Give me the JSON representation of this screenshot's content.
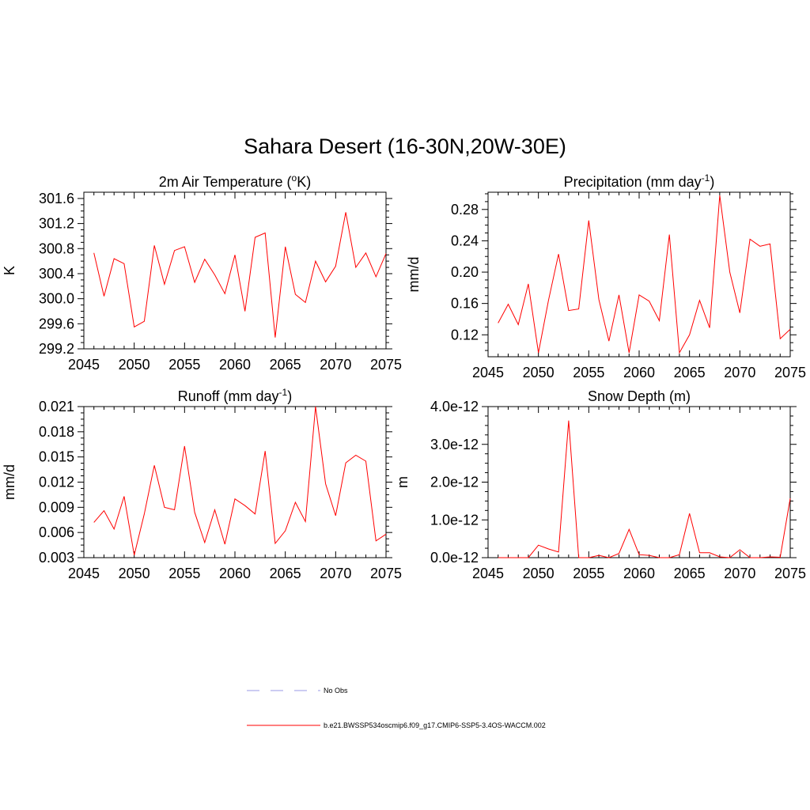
{
  "title": "Sahara Desert (16-30N,20W-30E)",
  "colors": {
    "model": "#ff0000",
    "obs": "#9a9ae6",
    "axis": "#000000"
  },
  "chart_data": [
    {
      "type": "line",
      "title": "2m Air Temperature (",
      "title_sup": "o",
      "title_post": "K)",
      "ylabel": "K",
      "xlim": [
        2045,
        2075
      ],
      "ylim": [
        299.2,
        301.7
      ],
      "xticks": [
        2045,
        2050,
        2055,
        2060,
        2065,
        2070,
        2075
      ],
      "xtick_labels": [
        "2045",
        "2050",
        "2055",
        "2060",
        "2065",
        "2070",
        "2075"
      ],
      "yticks": [
        299.2,
        299.6,
        300.0,
        300.4,
        300.8,
        301.2,
        301.6
      ],
      "ytick_labels": [
        "299.2",
        "299.6",
        "300.0",
        "300.4",
        "300.8",
        "301.2",
        "301.6"
      ],
      "x": [
        2046,
        2047,
        2048,
        2049,
        2050,
        2051,
        2052,
        2053,
        2054,
        2055,
        2056,
        2057,
        2058,
        2059,
        2060,
        2061,
        2062,
        2063,
        2064,
        2065,
        2066,
        2067,
        2068,
        2069,
        2070,
        2071,
        2072,
        2073,
        2074,
        2075
      ],
      "series": [
        {
          "values": [
            300.73,
            300.04,
            300.64,
            300.56,
            299.55,
            299.64,
            300.85,
            300.23,
            300.77,
            300.83,
            300.26,
            300.63,
            300.38,
            300.08,
            300.7,
            299.8,
            300.98,
            301.05,
            299.38,
            300.83,
            300.07,
            299.94,
            300.6,
            300.27,
            300.52,
            301.38,
            300.5,
            300.73,
            300.35,
            300.72
          ]
        }
      ]
    },
    {
      "type": "line",
      "title": "Precipitation (mm day",
      "title_sup": "-1",
      "title_post": ")",
      "ylabel": "mm/d",
      "xlim": [
        2045,
        2075
      ],
      "ylim": [
        0.092,
        0.302
      ],
      "xticks": [
        2045,
        2050,
        2055,
        2060,
        2065,
        2070,
        2075
      ],
      "xtick_labels": [
        "2045",
        "2050",
        "2055",
        "2060",
        "2065",
        "2070",
        "2075"
      ],
      "yticks": [
        0.12,
        0.16,
        0.2,
        0.24,
        0.28
      ],
      "ytick_labels": [
        "0.12",
        "0.16",
        "0.20",
        "0.24",
        "0.28"
      ],
      "x": [
        2046,
        2047,
        2048,
        2049,
        2050,
        2051,
        2052,
        2053,
        2054,
        2055,
        2056,
        2057,
        2058,
        2059,
        2060,
        2061,
        2062,
        2063,
        2064,
        2065,
        2066,
        2067,
        2068,
        2069,
        2070,
        2071,
        2072,
        2073,
        2074,
        2075
      ],
      "series": [
        {
          "values": [
            0.135,
            0.159,
            0.133,
            0.185,
            0.097,
            0.164,
            0.223,
            0.151,
            0.153,
            0.266,
            0.165,
            0.112,
            0.171,
            0.097,
            0.171,
            0.163,
            0.138,
            0.248,
            0.097,
            0.12,
            0.164,
            0.129,
            0.298,
            0.2,
            0.148,
            0.242,
            0.233,
            0.236,
            0.115,
            0.127
          ]
        }
      ]
    },
    {
      "type": "line",
      "title": "Runoff (mm day",
      "title_sup": "-1",
      "title_post": ")",
      "ylabel": "mm/d",
      "xlim": [
        2045,
        2075
      ],
      "ylim": [
        0.003,
        0.021
      ],
      "xticks": [
        2045,
        2050,
        2055,
        2060,
        2065,
        2070,
        2075
      ],
      "xtick_labels": [
        "2045",
        "2050",
        "2055",
        "2060",
        "2065",
        "2070",
        "2075"
      ],
      "yticks": [
        0.003,
        0.006,
        0.009,
        0.012,
        0.015,
        0.018,
        0.021
      ],
      "ytick_labels": [
        "0.003",
        "0.006",
        "0.009",
        "0.012",
        "0.015",
        "0.018",
        "0.021"
      ],
      "x": [
        2046,
        2047,
        2048,
        2049,
        2050,
        2051,
        2052,
        2053,
        2054,
        2055,
        2056,
        2057,
        2058,
        2059,
        2060,
        2061,
        2062,
        2063,
        2064,
        2065,
        2066,
        2067,
        2068,
        2069,
        2070,
        2071,
        2072,
        2073,
        2074,
        2075
      ],
      "series": [
        {
          "values": [
            0.0072,
            0.0086,
            0.0064,
            0.0103,
            0.0033,
            0.0082,
            0.014,
            0.009,
            0.0087,
            0.0163,
            0.0084,
            0.0048,
            0.0087,
            0.0046,
            0.01,
            0.0092,
            0.0082,
            0.0157,
            0.0047,
            0.0062,
            0.0096,
            0.0073,
            0.021,
            0.0118,
            0.008,
            0.0143,
            0.0152,
            0.0145,
            0.005,
            0.0058
          ]
        }
      ]
    },
    {
      "type": "line",
      "title": "Snow Depth (m)",
      "title_sup": "",
      "title_post": "",
      "ylabel": "m",
      "xlim": [
        2045,
        2075
      ],
      "ylim": [
        0,
        4e-12
      ],
      "xticks": [
        2045,
        2050,
        2055,
        2060,
        2065,
        2070,
        2075
      ],
      "xtick_labels": [
        "2045",
        "2050",
        "2055",
        "2060",
        "2065",
        "2070",
        "2075"
      ],
      "yticks": [
        0,
        1e-12,
        2e-12,
        3e-12,
        4e-12
      ],
      "ytick_labels": [
        "0.0e-12",
        "1.0e-12",
        "2.0e-12",
        "3.0e-12",
        "4.0e-12"
      ],
      "x": [
        2046,
        2047,
        2048,
        2049,
        2050,
        2051,
        2052,
        2053,
        2054,
        2055,
        2056,
        2057,
        2058,
        2059,
        2060,
        2061,
        2062,
        2063,
        2064,
        2065,
        2066,
        2067,
        2068,
        2069,
        2070,
        2071,
        2072,
        2073,
        2074,
        2075
      ],
      "series": [
        {
          "values": [
            0,
            0,
            0,
            0,
            3.3e-13,
            2.3e-13,
            1.5e-13,
            3.63e-12,
            0,
            0,
            6e-14,
            0,
            1.1e-13,
            7.5e-13,
            8e-14,
            6e-14,
            0,
            0,
            8e-14,
            1.17e-12,
            1.3e-13,
            1.3e-13,
            2e-14,
            0,
            2.1e-13,
            0,
            0,
            2e-14,
            1e-14,
            1.57e-12
          ]
        }
      ]
    }
  ],
  "legend": {
    "obs_label": "No Obs",
    "model_label": "b.e21.BWSSP534oscmip6.f09_g17.CMIP6-SSP5-3.4OS-WACCM.002"
  }
}
